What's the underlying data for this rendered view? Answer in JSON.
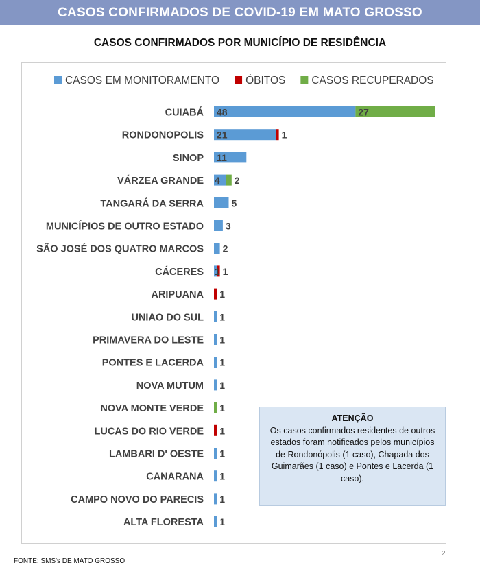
{
  "header": {
    "title": "CASOS CONFIRMADOS DE COVID-19 EM MATO GROSSO"
  },
  "chart_data": {
    "type": "bar",
    "orientation": "horizontal",
    "stacked": true,
    "title": "CASOS CONFIRMADOS POR MUNICÍPIO DE RESIDÊNCIA",
    "legend_position": "top",
    "grid": false,
    "categories": [
      "CUIABÁ",
      "RONDONOPOLIS",
      "SINOP",
      "VÁRZEA GRANDE",
      "TANGARÁ DA SERRA",
      "MUNICÍPIOS DE OUTRO ESTADO",
      "SÃO JOSÉ DOS QUATRO MARCOS",
      "CÁCERES",
      "ARIPUANA",
      "UNIAO DO SUL",
      "PRIMAVERA DO LESTE",
      "PONTES E LACERDA",
      "NOVA MUTUM",
      "NOVA MONTE VERDE",
      "LUCAS DO RIO VERDE",
      "LAMBARI D' OESTE",
      "CANARANA",
      "CAMPO NOVO DO PARECIS",
      "ALTA FLORESTA"
    ],
    "series": [
      {
        "name": "CASOS EM MONITORAMENTO",
        "color": "#5b9bd5",
        "values": [
          48,
          21,
          11,
          4,
          5,
          3,
          2,
          1,
          0,
          1,
          1,
          1,
          1,
          0,
          0,
          1,
          1,
          1,
          1
        ]
      },
      {
        "name": "ÓBITOS",
        "color": "#c00000",
        "values": [
          0,
          1,
          0,
          0,
          0,
          0,
          0,
          1,
          1,
          0,
          0,
          0,
          0,
          0,
          1,
          0,
          0,
          0,
          0
        ]
      },
      {
        "name": "CASOS RECUPERADOS",
        "color": "#70ad47",
        "values": [
          27,
          0,
          0,
          2,
          0,
          0,
          0,
          0,
          0,
          0,
          0,
          0,
          0,
          1,
          0,
          0,
          0,
          0,
          0
        ]
      }
    ],
    "data_labels": [
      [
        "48",
        "27"
      ],
      [
        "21",
        "1"
      ],
      [
        "11"
      ],
      [
        "4",
        "2"
      ],
      [
        "5"
      ],
      [
        "3"
      ],
      [
        "2"
      ],
      [
        "1",
        "1"
      ],
      [
        "1"
      ],
      [
        "1"
      ],
      [
        "1"
      ],
      [
        "1"
      ],
      [
        "1"
      ],
      [
        "1"
      ],
      [
        "1"
      ],
      [
        "1"
      ],
      [
        "1"
      ],
      [
        "1"
      ],
      [
        "1"
      ]
    ]
  },
  "note": {
    "title": "ATENÇÃO",
    "text": "Os casos confirmados residentes de outros estados foram notificados pelos municípios de Rondonópolis (1 caso), Chapada dos Guimarães (1 caso) e Pontes e Lacerda (1 caso)."
  },
  "footer": {
    "source": "FONTE: SMS's DE MATO GROSSO",
    "page_number": "2"
  }
}
